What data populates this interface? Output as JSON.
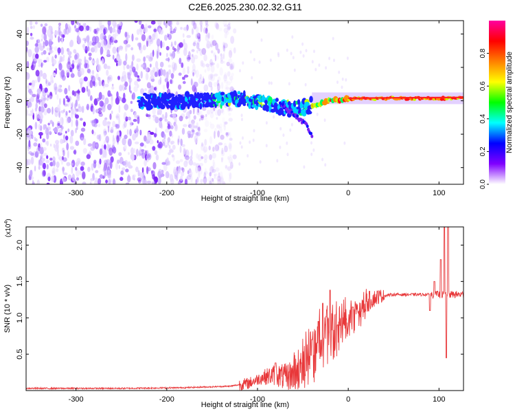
{
  "title": "C2E6.2025.230.02.32.G11",
  "chart_data": [
    {
      "type": "heatmap",
      "xlabel": "Height of straight line (km)",
      "ylabel": "Frequency (Hz)",
      "xlim": [
        -355,
        127
      ],
      "ylim": [
        -50,
        48
      ],
      "xticks": [
        -300,
        -200,
        -100,
        0,
        100
      ],
      "yticks": [
        -40,
        -20,
        0,
        20,
        40
      ],
      "colorbar": {
        "label": "Normalized spectral amplitude",
        "range": [
          0,
          1
        ],
        "ticks": [
          0.0,
          0.2,
          0.4,
          0.6,
          0.8
        ],
        "colors": [
          "#ffffff",
          "#8000ff",
          "#0000ff",
          "#00ffff",
          "#00ff00",
          "#ffff00",
          "#ff8000",
          "#ff0000",
          "#ff00a0"
        ]
      },
      "features": {
        "noise_region_x": [
          -355,
          -125
        ],
        "signal_trace": [
          [
            -200,
            0
          ],
          [
            -150,
            0.5
          ],
          [
            -120,
            1
          ],
          [
            -100,
            0
          ],
          [
            -80,
            -3
          ],
          [
            -60,
            -5
          ],
          [
            -40,
            -3
          ],
          [
            -20,
            0
          ],
          [
            0,
            1
          ],
          [
            50,
            1.5
          ],
          [
            100,
            1.5
          ],
          [
            127,
            1.5
          ]
        ],
        "side_branch": [
          [
            -75,
            -2
          ],
          [
            -60,
            -8
          ],
          [
            -45,
            -15
          ],
          [
            -40,
            -22
          ]
        ]
      }
    },
    {
      "type": "line",
      "xlabel": "Height of straight line (km)",
      "ylabel": "SNR (10 * v/v)",
      "yscale_label": "(x10",
      "yscale_exp": "4",
      "y_multiplier": 10000,
      "xlim": [
        -355,
        127
      ],
      "ylim": [
        0,
        2.25
      ],
      "xticks": [
        -300,
        -200,
        -100,
        0,
        100
      ],
      "yticks": [
        0.5,
        1.0,
        1.5,
        2.0
      ],
      "line_color": "#e8383a",
      "envelope": [
        [
          -355,
          0.03
        ],
        [
          -250,
          0.03
        ],
        [
          -180,
          0.04
        ],
        [
          -130,
          0.06
        ],
        [
          -110,
          0.1
        ],
        [
          -95,
          0.18
        ],
        [
          -80,
          0.22
        ],
        [
          -70,
          0.18
        ],
        [
          -55,
          0.25
        ],
        [
          -45,
          0.45
        ],
        [
          -35,
          0.6
        ],
        [
          -25,
          0.75
        ],
        [
          -15,
          0.85
        ],
        [
          -5,
          0.95
        ],
        [
          5,
          1.05
        ],
        [
          15,
          1.15
        ],
        [
          25,
          1.25
        ],
        [
          35,
          1.3
        ],
        [
          50,
          1.32
        ],
        [
          100,
          1.32
        ],
        [
          127,
          1.32
        ]
      ],
      "spikes": [
        [
          -80,
          0.38
        ],
        [
          -40,
          0.7
        ],
        [
          -33,
          0.95
        ],
        [
          -28,
          1.2
        ],
        [
          -20,
          1.38
        ],
        [
          -12,
          0.9
        ],
        [
          5,
          1.15
        ],
        [
          90,
          1.1
        ],
        [
          95,
          1.5
        ],
        [
          102,
          1.8
        ],
        [
          106,
          2.25
        ],
        [
          108,
          0.45
        ],
        [
          110,
          2.25
        ]
      ]
    }
  ]
}
